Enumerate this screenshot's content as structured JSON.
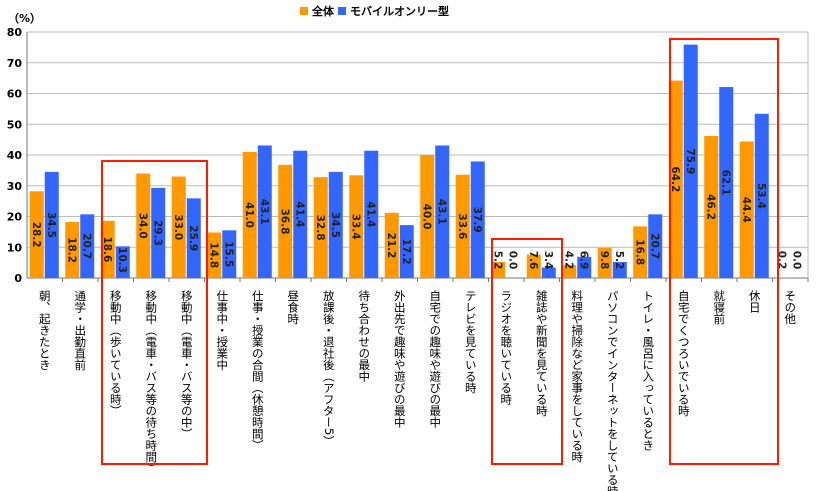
{
  "chart_data": {
    "type": "bar",
    "unit_label": "（%）",
    "ylim": [
      0,
      80
    ],
    "yticks": [
      0,
      10,
      20,
      30,
      40,
      50,
      60,
      70,
      80
    ],
    "grid": true,
    "legend_position": "top",
    "categories": [
      "朝、起きたとき",
      "通学・出勤直前",
      "移動中（歩いている時）",
      "移動中（電車・バス等の待ち時間）",
      "移動中（電車・バス等の中）",
      "仕事中・授業中",
      "仕事・授業の合間（休憩時間）",
      "昼食時",
      "放課後・退社後（アフター5）",
      "待ち合わせの最中",
      "外出先で趣味や遊びの最中",
      "自宅での趣味や遊びの最中",
      "テレビを見ている時",
      "ラジオを聴いている時",
      "雑誌や新聞を見ている時",
      "料理や掃除など家事をしている時",
      "パソコンでインターネットをしている時",
      "トイレ・風呂に入っているとき",
      "自宅でくつろいでいる時",
      "就寝前",
      "休日",
      "その他"
    ],
    "series": [
      {
        "name": "全体",
        "color": "#FF9900",
        "values": [
          28.2,
          18.2,
          18.6,
          34.0,
          33.0,
          14.8,
          41.0,
          36.8,
          32.8,
          33.4,
          21.2,
          40.0,
          33.6,
          5.2,
          7.6,
          4.2,
          9.8,
          16.8,
          64.2,
          46.2,
          44.4,
          0.2
        ]
      },
      {
        "name": "モバイルオンリー型",
        "color": "#3366FF",
        "values": [
          34.5,
          20.7,
          10.3,
          29.3,
          25.9,
          15.5,
          43.1,
          41.4,
          34.5,
          41.4,
          17.2,
          43.1,
          37.9,
          0.0,
          3.4,
          6.9,
          5.2,
          20.7,
          75.9,
          62.1,
          53.4,
          0.0
        ]
      }
    ],
    "highlighted_groups": [
      [
        "移動中（歩いている時）",
        "移動中（電車・バス等の中）"
      ],
      [
        "ラジオを聴いている時",
        "雑誌や新聞を見ている時"
      ],
      [
        "自宅でくつろいでいる時",
        "休日"
      ]
    ]
  }
}
